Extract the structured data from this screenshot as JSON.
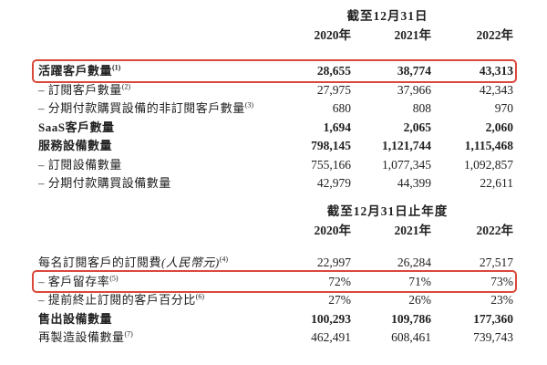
{
  "accent": {
    "highlight_border_color": "#d9493b",
    "text_color": "#212121"
  },
  "table1": {
    "period_header": "截至12月31日",
    "years": [
      "2020年",
      "2021年",
      "2022年"
    ],
    "rows": [
      {
        "label": "活躍客戶數量",
        "sup": "(1)",
        "values": [
          "28,655",
          "38,774",
          "43,313"
        ],
        "bold": true,
        "highlight": true
      },
      {
        "label": "– 訂閱客戶數量",
        "sup": "(2)",
        "values": [
          "27,975",
          "37,966",
          "42,343"
        ],
        "bold": false,
        "highlight": false
      },
      {
        "label": "– 分期付款購買設備的非訂閱客戶數量",
        "sup": "(3)",
        "values": [
          "680",
          "808",
          "970"
        ],
        "bold": false,
        "highlight": false
      },
      {
        "label": "SaaS客戶數量",
        "sup": "",
        "values": [
          "1,694",
          "2,065",
          "2,060"
        ],
        "bold": true,
        "highlight": false
      },
      {
        "label": "服務設備數量",
        "sup": "",
        "values": [
          "798,145",
          "1,121,744",
          "1,115,468"
        ],
        "bold": true,
        "highlight": false
      },
      {
        "label": "– 訂閱設備數量",
        "sup": "",
        "values": [
          "755,166",
          "1,077,345",
          "1,092,857"
        ],
        "bold": false,
        "highlight": false
      },
      {
        "label": "– 分期付款購買設備數量",
        "sup": "",
        "values": [
          "42,979",
          "44,399",
          "22,611"
        ],
        "bold": false,
        "highlight": false
      }
    ]
  },
  "table2": {
    "period_header": "截至12月31日止年度",
    "years": [
      "2020年",
      "2021年",
      "2022年"
    ],
    "rows": [
      {
        "label": "每名訂閱客戶的訂閱費",
        "label_italic": "(人民幣元)",
        "sup": "(4)",
        "values": [
          "22,997",
          "26,284",
          "27,517"
        ],
        "bold": false,
        "highlight": false
      },
      {
        "label": "– 客戶留存率",
        "sup": "(5)",
        "values": [
          "72%",
          "71%",
          "73%"
        ],
        "bold": false,
        "highlight": true
      },
      {
        "label": "– 提前終止訂閱的客戶百分比",
        "sup": "(6)",
        "values": [
          "27%",
          "26%",
          "23%"
        ],
        "bold": false,
        "highlight": false
      },
      {
        "label": "售出設備數量",
        "sup": "",
        "values": [
          "100,293",
          "109,786",
          "177,360"
        ],
        "bold": true,
        "highlight": false
      },
      {
        "label": "再製造設備數量",
        "sup": "(7)",
        "values": [
          "462,491",
          "608,461",
          "739,743"
        ],
        "bold": false,
        "highlight": false
      }
    ]
  }
}
